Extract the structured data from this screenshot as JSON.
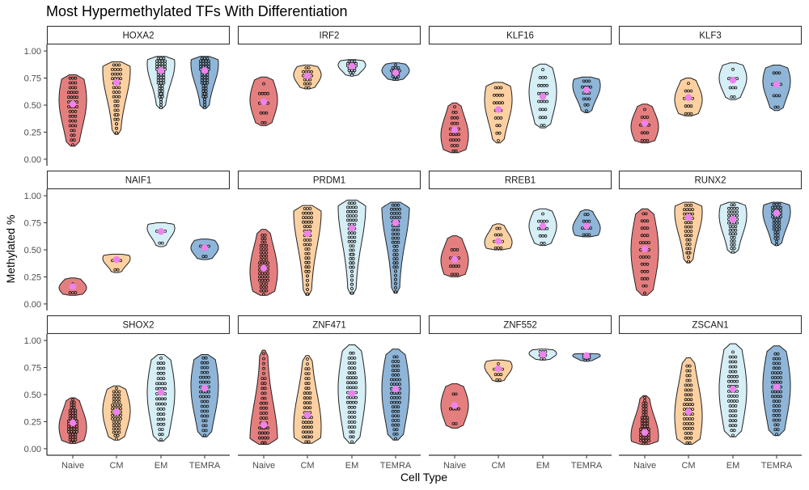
{
  "chart_data": {
    "type": "violin",
    "title": "Most Hypermethylated TFs With Differentiation",
    "xlabel": "Cell Type",
    "ylabel": "Methylated %",
    "categories": [
      "Naive",
      "CM",
      "EM",
      "TEMRA"
    ],
    "colors": {
      "Naive": "#e57f7f",
      "CM": "#fdd0a2",
      "EM": "#d6eef5",
      "TEMRA": "#8fb6d8"
    },
    "mean_marker_color": "#ee82ee",
    "ylim": [
      0,
      1
    ],
    "yticks": [
      0,
      0.25,
      0.5,
      0.75,
      1
    ],
    "ytick_labels": [
      "0.00",
      "0.25",
      "0.50",
      "0.75",
      "1.00"
    ],
    "grid": false,
    "legend": "none",
    "facet_layout": {
      "rows": 3,
      "cols": 4
    },
    "panels": [
      {
        "name": "HOXA2",
        "groups": [
          {
            "min": 0.12,
            "max": 0.78,
            "mean": 0.51,
            "mode": 0.55,
            "n": 44
          },
          {
            "min": 0.23,
            "max": 0.9,
            "mean": 0.71,
            "mode": 0.82,
            "n": 46
          },
          {
            "min": 0.47,
            "max": 0.95,
            "mean": 0.82,
            "mode": 0.88,
            "n": 55
          },
          {
            "min": 0.47,
            "max": 0.95,
            "mean": 0.82,
            "mode": 0.88,
            "n": 55
          }
        ]
      },
      {
        "name": "IRF2",
        "groups": [
          {
            "min": 0.31,
            "max": 0.76,
            "mean": 0.53,
            "mode": 0.55,
            "n": 14
          },
          {
            "min": 0.65,
            "max": 0.87,
            "mean": 0.77,
            "mode": 0.78,
            "n": 18
          },
          {
            "min": 0.77,
            "max": 0.92,
            "mean": 0.86,
            "mode": 0.87,
            "n": 20
          },
          {
            "min": 0.73,
            "max": 0.89,
            "mean": 0.8,
            "mode": 0.82,
            "n": 16
          }
        ]
      },
      {
        "name": "KLF16",
        "groups": [
          {
            "min": 0.06,
            "max": 0.52,
            "mean": 0.27,
            "mode": 0.22,
            "n": 26
          },
          {
            "min": 0.15,
            "max": 0.71,
            "mean": 0.46,
            "mode": 0.55,
            "n": 22
          },
          {
            "min": 0.29,
            "max": 0.88,
            "mean": 0.58,
            "mode": 0.62,
            "n": 24
          },
          {
            "min": 0.43,
            "max": 0.76,
            "mean": 0.64,
            "mode": 0.68,
            "n": 16
          }
        ]
      },
      {
        "name": "KLF3",
        "groups": [
          {
            "min": 0.15,
            "max": 0.51,
            "mean": 0.33,
            "mode": 0.3,
            "n": 14
          },
          {
            "min": 0.4,
            "max": 0.75,
            "mean": 0.57,
            "mode": 0.55,
            "n": 14
          },
          {
            "min": 0.55,
            "max": 0.89,
            "mean": 0.73,
            "mode": 0.75,
            "n": 10
          },
          {
            "min": 0.45,
            "max": 0.87,
            "mean": 0.69,
            "mode": 0.72,
            "n": 12
          }
        ]
      },
      {
        "name": "NAIF1",
        "groups": [
          {
            "min": 0.08,
            "max": 0.24,
            "mean": 0.16,
            "mode": 0.15,
            "n": 4
          },
          {
            "min": 0.29,
            "max": 0.46,
            "mean": 0.41,
            "mode": 0.42,
            "n": 6
          },
          {
            "min": 0.53,
            "max": 0.75,
            "mean": 0.67,
            "mode": 0.7,
            "n": 6
          },
          {
            "min": 0.41,
            "max": 0.6,
            "mean": 0.52,
            "mode": 0.52,
            "n": 6
          }
        ]
      },
      {
        "name": "PRDM1",
        "groups": [
          {
            "min": 0.08,
            "max": 0.69,
            "mean": 0.33,
            "mode": 0.3,
            "n": 55
          },
          {
            "min": 0.08,
            "max": 0.91,
            "mean": 0.65,
            "mode": 0.85,
            "n": 60
          },
          {
            "min": 0.09,
            "max": 0.96,
            "mean": 0.7,
            "mode": 0.9,
            "n": 65
          },
          {
            "min": 0.1,
            "max": 0.94,
            "mean": 0.75,
            "mode": 0.9,
            "n": 65
          }
        ]
      },
      {
        "name": "RREB1",
        "groups": [
          {
            "min": 0.25,
            "max": 0.63,
            "mean": 0.41,
            "mode": 0.4,
            "n": 14
          },
          {
            "min": 0.5,
            "max": 0.74,
            "mean": 0.58,
            "mode": 0.57,
            "n": 12
          },
          {
            "min": 0.54,
            "max": 0.88,
            "mean": 0.72,
            "mode": 0.72,
            "n": 14
          },
          {
            "min": 0.62,
            "max": 0.87,
            "mean": 0.72,
            "mode": 0.7,
            "n": 12
          }
        ]
      },
      {
        "name": "RUNX2",
        "groups": [
          {
            "min": 0.08,
            "max": 0.88,
            "mean": 0.51,
            "mode": 0.5,
            "n": 36
          },
          {
            "min": 0.38,
            "max": 0.94,
            "mean": 0.8,
            "mode": 0.85,
            "n": 40
          },
          {
            "min": 0.47,
            "max": 0.94,
            "mean": 0.78,
            "mode": 0.82,
            "n": 40
          },
          {
            "min": 0.54,
            "max": 0.94,
            "mean": 0.84,
            "mode": 0.85,
            "n": 40
          }
        ]
      },
      {
        "name": "SHOX2",
        "groups": [
          {
            "min": 0.05,
            "max": 0.47,
            "mean": 0.24,
            "mode": 0.2,
            "n": 50
          },
          {
            "min": 0.08,
            "max": 0.58,
            "mean": 0.34,
            "mode": 0.35,
            "n": 48
          },
          {
            "min": 0.07,
            "max": 0.87,
            "mean": 0.52,
            "mode": 0.52,
            "n": 50
          },
          {
            "min": 0.11,
            "max": 0.87,
            "mean": 0.56,
            "mode": 0.58,
            "n": 50
          }
        ]
      },
      {
        "name": "ZNF471",
        "groups": [
          {
            "min": 0.04,
            "max": 0.91,
            "mean": 0.22,
            "mode": 0.08,
            "n": 55
          },
          {
            "min": 0.05,
            "max": 0.86,
            "mean": 0.31,
            "mode": 0.2,
            "n": 52
          },
          {
            "min": 0.05,
            "max": 0.96,
            "mean": 0.51,
            "mode": 0.55,
            "n": 58
          },
          {
            "min": 0.08,
            "max": 0.92,
            "mean": 0.55,
            "mode": 0.55,
            "n": 58
          }
        ]
      },
      {
        "name": "ZNF552",
        "groups": [
          {
            "min": 0.19,
            "max": 0.6,
            "mean": 0.4,
            "mode": 0.4,
            "n": 8
          },
          {
            "min": 0.62,
            "max": 0.82,
            "mean": 0.74,
            "mode": 0.76,
            "n": 10
          },
          {
            "min": 0.82,
            "max": 0.92,
            "mean": 0.87,
            "mode": 0.88,
            "n": 8
          },
          {
            "min": 0.81,
            "max": 0.88,
            "mean": 0.86,
            "mode": 0.86,
            "n": 8
          }
        ]
      },
      {
        "name": "ZSCAN1",
        "groups": [
          {
            "min": 0.04,
            "max": 0.49,
            "mean": 0.15,
            "mode": 0.12,
            "n": 50
          },
          {
            "min": 0.04,
            "max": 0.84,
            "mean": 0.34,
            "mode": 0.3,
            "n": 52
          },
          {
            "min": 0.11,
            "max": 0.97,
            "mean": 0.55,
            "mode": 0.55,
            "n": 55
          },
          {
            "min": 0.12,
            "max": 0.95,
            "mean": 0.57,
            "mode": 0.58,
            "n": 55
          }
        ]
      }
    ]
  }
}
